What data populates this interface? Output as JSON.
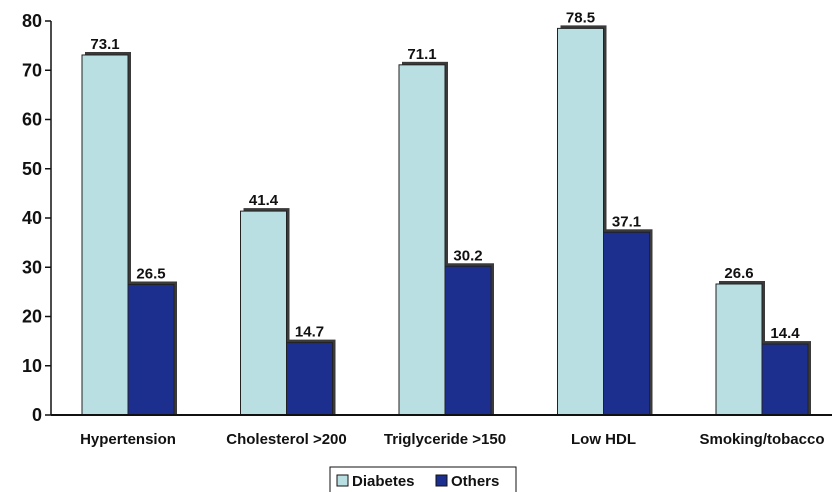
{
  "chart_data": {
    "type": "bar",
    "categories": [
      "Hypertension",
      "Cholesterol >200",
      "Triglyceride >150",
      "Low HDL",
      "Smoking/tobacco"
    ],
    "series": [
      {
        "name": "Diabetes",
        "values": [
          73.1,
          41.4,
          71.1,
          78.5,
          26.6
        ],
        "color": "#b9dfe3"
      },
      {
        "name": "Others",
        "values": [
          26.5,
          14.7,
          30.2,
          37.1,
          14.4
        ],
        "color": "#1c2f8e"
      }
    ],
    "data_labels": [
      [
        "73.1",
        "41.4",
        "71.1",
        "78.5",
        "26.6"
      ],
      [
        "26.5",
        "14.7",
        "30.2",
        "37.1",
        "14.4"
      ]
    ],
    "title": "",
    "xlabel": "",
    "ylabel": "",
    "ylim": [
      0,
      80
    ],
    "yticks": [
      0,
      10,
      20,
      30,
      40,
      50,
      60,
      70,
      80
    ],
    "ytick_labels": [
      "0",
      "10",
      "20",
      "30",
      "40",
      "50",
      "60",
      "70",
      "80"
    ],
    "grid": false,
    "legend_position": "bottom-center"
  }
}
